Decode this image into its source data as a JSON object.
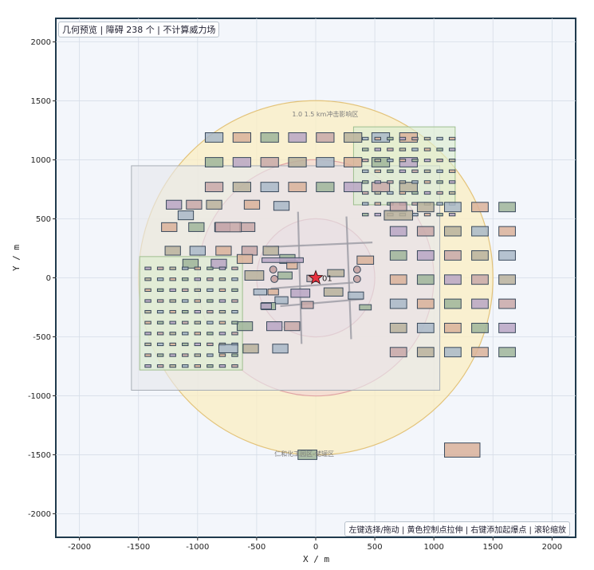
{
  "header": {
    "info_text": "几何预览 | 障碍 238 个 | 不计算威力场"
  },
  "footer": {
    "hint_text": "左键选择/拖动 | 黄色控制点拉伸 | 右键添加起爆点 | 滚轮缩放"
  },
  "axes": {
    "xlabel": "X / m",
    "ylabel": "Y / m",
    "xlim": [
      -2200,
      2200
    ],
    "ylim": [
      -2200,
      2200
    ],
    "xticks": [
      -2000,
      -1500,
      -1000,
      -500,
      0,
      500,
      1000,
      1500,
      2000
    ],
    "yticks": [
      -2000,
      -1500,
      -1000,
      -500,
      0,
      500,
      1000,
      1500,
      2000
    ],
    "grid": true
  },
  "chart_data": {
    "type": "scatter",
    "title": "",
    "xlabel": "X / m",
    "ylabel": "Y / m",
    "xlim": [
      -2200,
      2200
    ],
    "ylim": [
      -2200,
      2200
    ],
    "circles": [
      {
        "cx": 0,
        "cy": 0,
        "r": 1500,
        "fill": "#fbeec2",
        "stroke": "#e3c37a"
      },
      {
        "cx": 0,
        "cy": 0,
        "r": 1000,
        "fill": "#f3d9d4",
        "stroke": "#e0a4a4"
      },
      {
        "cx": 0,
        "cy": 0,
        "r": 500,
        "fill": "#eccfd4",
        "stroke": "#d79aa0"
      }
    ],
    "zones": [
      {
        "x1": -1560,
        "y1": -950,
        "x2": 1050,
        "y2": 950,
        "fill": "#e6e8ec",
        "stroke": "#a8aeb6"
      },
      {
        "x1": 320,
        "y1": 620,
        "x2": 1180,
        "y2": 1280,
        "fill": "#dbeccf",
        "stroke": "#9fbf8f"
      },
      {
        "x1": -1490,
        "y1": -780,
        "x2": -620,
        "y2": 180,
        "fill": "#dbeccf",
        "stroke": "#9fbf8f"
      }
    ],
    "annotations": [
      {
        "x": -200,
        "y": 1370,
        "text": "1.0 1.5 km冲击影响区"
      },
      {
        "x": -350,
        "y": -1510,
        "text": "仁和化工园区-储罐区"
      }
    ],
    "detonation_point": {
      "x": 0,
      "y": 0,
      "label": "01",
      "color": "#e8313f"
    }
  },
  "colors": {
    "frame": "#1f3a4d",
    "plot_bg": "#f3f6fb",
    "grid": "#d6dde7",
    "obstacle_stroke": "#3a4a5c"
  }
}
